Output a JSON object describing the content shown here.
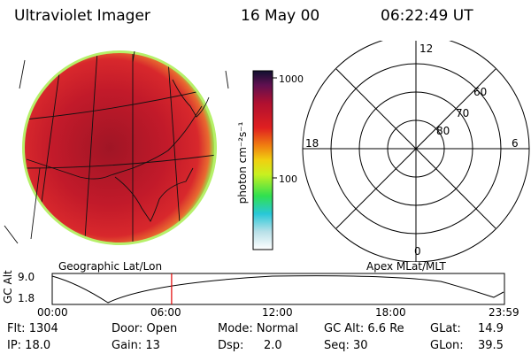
{
  "header": {
    "instrument": "Ultraviolet Imager",
    "date": "16 May 00",
    "time": "06:22:49 UT"
  },
  "colorbar": {
    "unit_label": "photon cm⁻²s⁻¹",
    "ticks": [
      "1000",
      "100"
    ]
  },
  "polar_plot": {
    "mlt_labels": [
      "12",
      "18",
      "6",
      "0"
    ],
    "lat_labels": [
      "60",
      "70",
      "80"
    ]
  },
  "timeline": {
    "left_title": "Geographic Lat/Lon",
    "right_title": "Apex MLat/MLT",
    "y_label": "GC Alt",
    "y_ticks": [
      "9.0",
      "1.8"
    ],
    "x_ticks": [
      "00:00",
      "06:00",
      "12:00",
      "18:00",
      "23:59"
    ],
    "current_time_fraction": 0.264
  },
  "status": {
    "flt": "Flt: 1304",
    "ip": "IP: 18.0",
    "door": "Door: Open",
    "gain": "Gain: 13",
    "mode": "Mode: Normal",
    "dsp_label": "Dsp:",
    "dsp_value": "2.0",
    "gc_alt": "GC Alt: 6.6 Re",
    "seq": "Seq: 30",
    "glat": "GLat:",
    "glat_value": "14.9",
    "glon": "GLon:",
    "glon_value": "39.5"
  },
  "colors": {
    "earth_base": "#c41a2a",
    "cursor": "#e00000"
  }
}
